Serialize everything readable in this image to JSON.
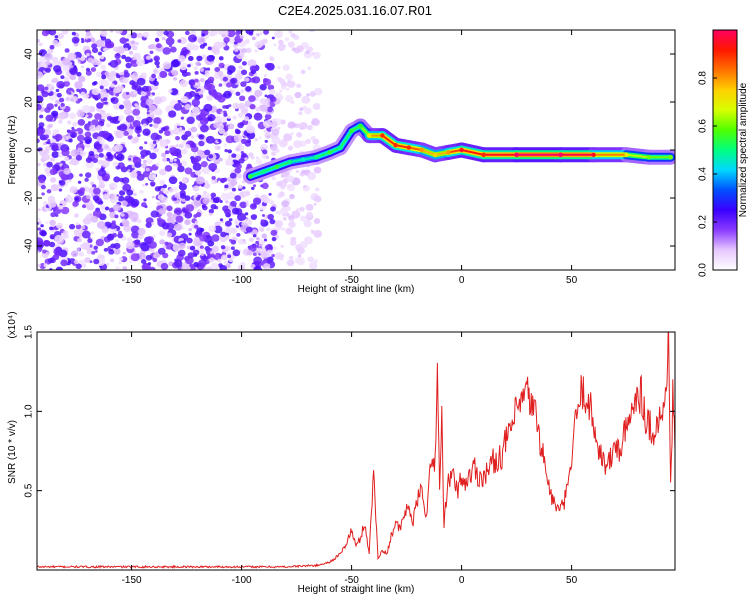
{
  "title": "C2E4.2025.031.16.07.R01",
  "chart_data": [
    {
      "type": "heatmap",
      "xlabel": "Height of straight line (km)",
      "ylabel": "Frequency (Hz)",
      "xlim": [
        -193,
        97
      ],
      "ylim": [
        -50,
        50
      ],
      "x_ticks": [
        -150,
        -100,
        -50,
        0,
        50
      ],
      "y_ticks": [
        -40,
        -20,
        0,
        20,
        40
      ],
      "colorbar": {
        "label": "Normalized spectral amplitude",
        "range": [
          0,
          1
        ],
        "ticks": [
          0.0,
          0.2,
          0.4,
          0.6,
          0.8
        ],
        "tick_labels": [
          "0.0",
          "0.2",
          "0.4",
          "0.6",
          "0.8"
        ],
        "colors": [
          "#ffffff",
          "#e6c8ff",
          "#8a3cff",
          "#3a00ff",
          "#0050ff",
          "#00d8ff",
          "#00ff80",
          "#50ff00",
          "#d8ff00",
          "#ffd000",
          "#ff7000",
          "#ff1800",
          "#ff0060"
        ]
      },
      "noise_region_x": [
        -193,
        -65
      ],
      "ridge": [
        {
          "x": -96,
          "y": -11,
          "amp": 0.55
        },
        {
          "x": -90,
          "y": -9,
          "amp": 0.5
        },
        {
          "x": -84,
          "y": -7,
          "amp": 0.55
        },
        {
          "x": -78,
          "y": -5,
          "amp": 0.5
        },
        {
          "x": -72,
          "y": -4,
          "amp": 0.45
        },
        {
          "x": -66,
          "y": -3,
          "amp": 0.5
        },
        {
          "x": -60,
          "y": -1,
          "amp": 0.55
        },
        {
          "x": -55,
          "y": 1,
          "amp": 0.5
        },
        {
          "x": -50,
          "y": 8,
          "amp": 0.55
        },
        {
          "x": -46,
          "y": 10,
          "amp": 0.55
        },
        {
          "x": -42,
          "y": 6,
          "amp": 0.7
        },
        {
          "x": -36,
          "y": 6,
          "amp": 0.9
        },
        {
          "x": -30,
          "y": 2,
          "amp": 0.9
        },
        {
          "x": -24,
          "y": 1,
          "amp": 0.9
        },
        {
          "x": -18,
          "y": 0,
          "amp": 0.8
        },
        {
          "x": -12,
          "y": -2,
          "amp": 0.75
        },
        {
          "x": -6,
          "y": -1,
          "amp": 0.8
        },
        {
          "x": 0,
          "y": 0,
          "amp": 0.95
        },
        {
          "x": 10,
          "y": -2,
          "amp": 0.9
        },
        {
          "x": 25,
          "y": -2,
          "amp": 1.0
        },
        {
          "x": 45,
          "y": -2,
          "amp": 1.0
        },
        {
          "x": 60,
          "y": -2,
          "amp": 0.95
        },
        {
          "x": 75,
          "y": -2,
          "amp": 0.7
        },
        {
          "x": 85,
          "y": -3,
          "amp": 0.6
        },
        {
          "x": 95,
          "y": -3,
          "amp": 0.6
        }
      ]
    },
    {
      "type": "line",
      "xlabel": "Height of straight line (km)",
      "ylabel": "SNR (10 * v/v)",
      "y_multiplier": "(x10⁴)",
      "xlim": [
        -193,
        97
      ],
      "ylim": [
        0,
        1.5
      ],
      "x_ticks": [
        -150,
        -100,
        -50,
        0,
        50
      ],
      "y_ticks": [
        0.5,
        1.0,
        1.5
      ],
      "y_tick_labels": [
        "0.5",
        "1.0",
        "1.5"
      ],
      "series": [
        {
          "color": "#e02020",
          "x": [
            -193,
            -150,
            -100,
            -80,
            -65,
            -60,
            -55,
            -52,
            -50,
            -48,
            -46,
            -44,
            -42,
            -40,
            -38,
            -36,
            -34,
            -32,
            -30,
            -28,
            -26,
            -24,
            -22,
            -20,
            -18,
            -16,
            -14,
            -12,
            -11,
            -10,
            -9,
            -8,
            -6,
            -4,
            -2,
            0,
            2,
            4,
            6,
            8,
            10,
            12,
            14,
            16,
            18,
            20,
            22,
            24,
            26,
            28,
            30,
            32,
            34,
            36,
            38,
            40,
            42,
            44,
            46,
            48,
            50,
            52,
            54,
            56,
            58,
            60,
            62,
            64,
            66,
            68,
            70,
            72,
            74,
            76,
            78,
            80,
            82,
            84,
            86,
            88,
            90,
            92,
            93,
            94,
            95,
            96,
            97
          ],
          "y": [
            0.02,
            0.02,
            0.02,
            0.02,
            0.03,
            0.05,
            0.1,
            0.18,
            0.25,
            0.15,
            0.2,
            0.3,
            0.1,
            0.62,
            0.08,
            0.12,
            0.1,
            0.22,
            0.3,
            0.25,
            0.35,
            0.4,
            0.3,
            0.45,
            0.5,
            0.35,
            0.65,
            0.7,
            1.28,
            0.5,
            0.95,
            0.3,
            0.55,
            0.6,
            0.5,
            0.58,
            0.55,
            0.6,
            0.65,
            0.58,
            0.6,
            0.62,
            0.68,
            0.7,
            0.72,
            0.8,
            0.88,
            0.95,
            1.02,
            1.08,
            1.1,
            1.05,
            0.95,
            0.8,
            0.65,
            0.5,
            0.42,
            0.38,
            0.4,
            0.5,
            0.7,
            0.95,
            1.1,
            1.13,
            1.05,
            0.9,
            0.8,
            0.7,
            0.65,
            0.7,
            0.8,
            0.75,
            0.85,
            0.9,
            1.05,
            1.15,
            1.1,
            0.95,
            0.9,
            0.88,
            0.95,
            1.0,
            1.2,
            1.5,
            0.5,
            1.1,
            0.75
          ]
        }
      ]
    }
  ]
}
